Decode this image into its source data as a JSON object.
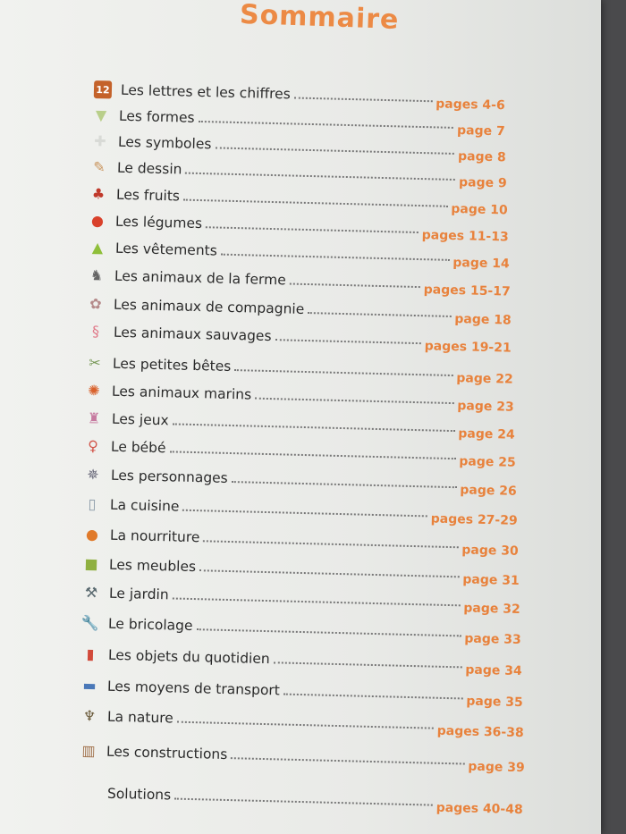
{
  "title": "Sommaire",
  "accent_color": "#e8823c",
  "entries": [
    {
      "label": "Les lettres et les chiffres",
      "pages": "pages 4-6",
      "icon": "number-tile-icon"
    },
    {
      "label": "Les formes",
      "pages": "page 7",
      "icon": "trapezoid-shape-icon"
    },
    {
      "label": "Les symboles",
      "pages": "page 8",
      "icon": "cross-outline-icon"
    },
    {
      "label": "Le dessin",
      "pages": "page 9",
      "icon": "pencil-icon"
    },
    {
      "label": "Les fruits",
      "pages": "page 10",
      "icon": "cherries-icon"
    },
    {
      "label": "Les légumes",
      "pages": "pages 11-13",
      "icon": "tomato-icon"
    },
    {
      "label": "Les vêtements",
      "pages": "page 14",
      "icon": "shorts-icon"
    },
    {
      "label": "Les animaux de la ferme",
      "pages": "pages 15-17",
      "icon": "donkey-icon"
    },
    {
      "label": "Les animaux de compagnie",
      "pages": "page 18",
      "icon": "mouse-icon"
    },
    {
      "label": "Les animaux sauvages",
      "pages": "pages 19-21",
      "icon": "flamingo-icon"
    },
    {
      "label": "Les petites bêtes",
      "pages": "page 22",
      "icon": "dragonfly-icon"
    },
    {
      "label": "Les animaux marins",
      "pages": "page 23",
      "icon": "crab-icon"
    },
    {
      "label": "Les jeux",
      "pages": "page 24",
      "icon": "toy-icon"
    },
    {
      "label": "Le bébé",
      "pages": "page 25",
      "icon": "rattle-icon"
    },
    {
      "label": "Les personnages",
      "pages": "page 26",
      "icon": "character-icon"
    },
    {
      "label": "La cuisine",
      "pages": "pages 27-29",
      "icon": "fridge-icon"
    },
    {
      "label": "La nourriture",
      "pages": "page 30",
      "icon": "food-icon"
    },
    {
      "label": "Les meubles",
      "pages": "page 31",
      "icon": "armchair-icon"
    },
    {
      "label": "Le jardin",
      "pages": "page 32",
      "icon": "shovel-icon"
    },
    {
      "label": "Le bricolage",
      "pages": "page 33",
      "icon": "wrench-icon"
    },
    {
      "label": "Les objets du quotidien",
      "pages": "page 34",
      "icon": "toothbrush-icon"
    },
    {
      "label": "Les moyens de transport",
      "pages": "page 35",
      "icon": "car-icon"
    },
    {
      "label": "La nature",
      "pages": "pages 36-38",
      "icon": "palm-tree-icon"
    },
    {
      "label": "Les constructions",
      "pages": "page 39",
      "icon": "building-icon"
    }
  ],
  "solutions": {
    "label": "Solutions",
    "pages": "pages 40-48"
  }
}
